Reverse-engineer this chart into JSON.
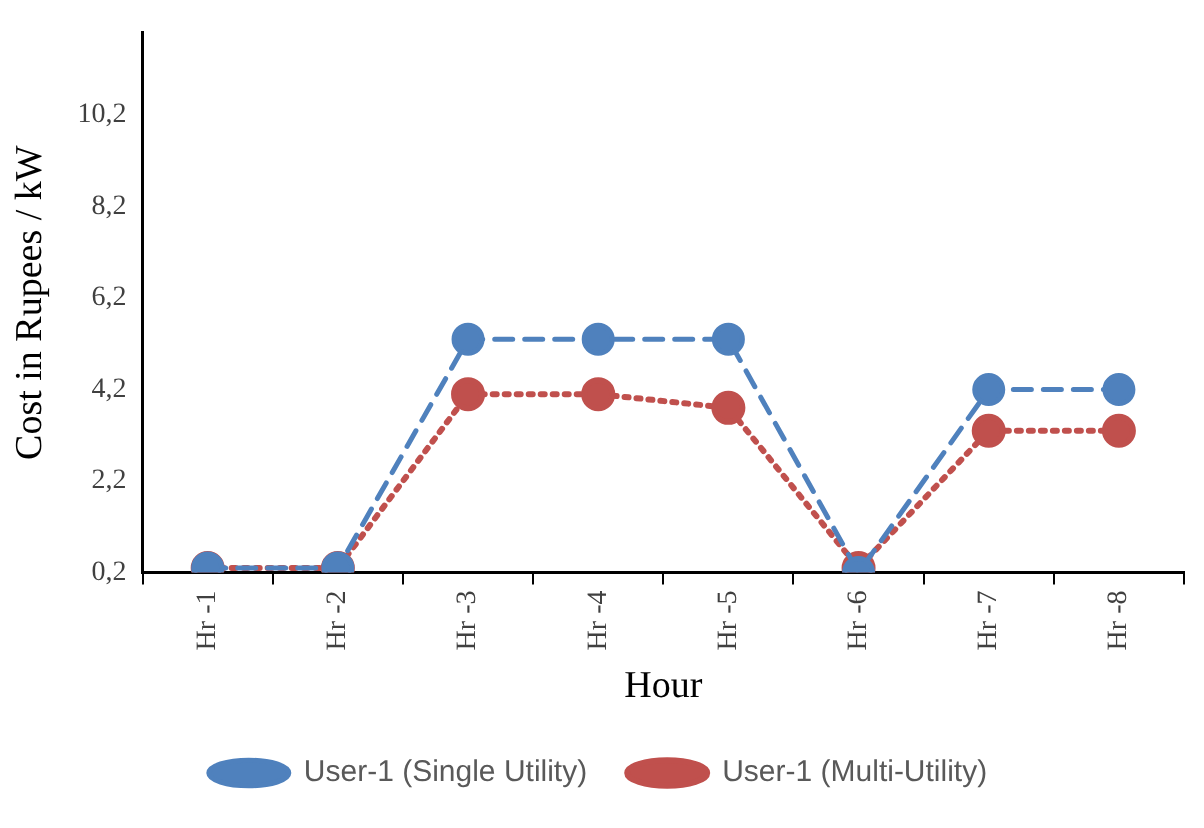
{
  "chart_data": {
    "type": "line",
    "xlabel": "Hour",
    "ylabel": "Cost in Rupees / kW",
    "categories": [
      "Hr -1",
      "Hr -2",
      "Hr -3",
      "Hr -4",
      "Hr -5",
      "Hr -6",
      "Hr -7",
      "Hr -8"
    ],
    "series": [
      {
        "name": "User-1 (Single Utility)",
        "color": "#4f81bd",
        "line_style": "dashed",
        "values": [
          0.3,
          0.3,
          5.3,
          5.3,
          5.3,
          0.2,
          4.2,
          4.2
        ]
      },
      {
        "name": "User-1 (Multi-Utility)",
        "color": "#c0504d",
        "line_style": "dotted",
        "values": [
          0.3,
          0.3,
          4.1,
          4.1,
          3.8,
          0.3,
          3.3,
          3.3
        ]
      }
    ],
    "ylim": [
      0.2,
      12
    ],
    "yticks": [
      {
        "value": 0.2,
        "label": "0,2"
      },
      {
        "value": 2.2,
        "label": "2,2"
      },
      {
        "value": 4.2,
        "label": "4,2"
      },
      {
        "value": 6.2,
        "label": "6,2"
      },
      {
        "value": 8.2,
        "label": "8,2"
      },
      {
        "value": 10.2,
        "label": "10,2"
      }
    ],
    "grid": false,
    "legend": "bottom",
    "marker": "circle"
  }
}
